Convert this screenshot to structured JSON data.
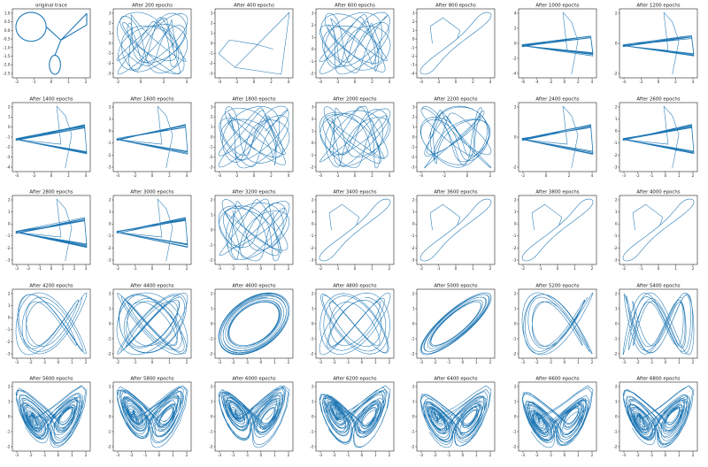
{
  "colors": {
    "trace": "#1f77b4",
    "axes": "#222222",
    "background": "#ffffff"
  },
  "chart_data": [
    {
      "type": "line",
      "title": "original trace",
      "xticks": [
        "-2",
        "-1",
        "0",
        "1",
        "2"
      ],
      "yticks": [
        "1.0",
        "0.5",
        "0.0",
        "-0.5",
        "-1.0",
        "-1.5",
        "-2.0",
        "-2.5"
      ],
      "shape": "original"
    },
    {
      "type": "line",
      "title": "After 200 epochs",
      "xticks": [
        "-2",
        "0",
        "2",
        "4"
      ],
      "yticks": [
        "3",
        "2",
        "1",
        "0",
        "-1",
        "-2",
        "-3"
      ],
      "shape": "tangle"
    },
    {
      "type": "line",
      "title": "After 400 epochs",
      "xticks": [
        "-4",
        "-2",
        "0",
        "2",
        "4"
      ],
      "yticks": [
        "3",
        "2",
        "1",
        "0",
        "-1",
        "-2",
        "-3"
      ],
      "shape": "triangle"
    },
    {
      "type": "line",
      "title": "After 600 epochs",
      "xticks": [
        "-4",
        "-2",
        "0",
        "2",
        "4"
      ],
      "yticks": [
        "3",
        "2",
        "1",
        "0",
        "-1",
        "-2"
      ],
      "shape": "tangle"
    },
    {
      "type": "line",
      "title": "After 800 epochs",
      "xticks": [
        "-4",
        "-2",
        "0",
        "2",
        "4"
      ],
      "yticks": [
        "3",
        "2",
        "1",
        "0",
        "-1",
        "-2",
        "-3",
        "-4"
      ],
      "shape": "band"
    },
    {
      "type": "line",
      "title": "After 1000 epochs",
      "xticks": [
        "-6",
        "-4",
        "-2",
        "0",
        "2",
        "4"
      ],
      "yticks": [
        "4",
        "2",
        "0",
        "-2",
        "-4"
      ],
      "shape": "flat"
    },
    {
      "type": "line",
      "title": "After 1200 epochs",
      "xticks": [
        "-4",
        "-2",
        "0",
        "2",
        "4"
      ],
      "yticks": [
        "2",
        "0",
        "-2"
      ],
      "shape": "flat"
    },
    {
      "type": "line",
      "title": "After 1400 epochs",
      "xticks": [
        "-4",
        "-2",
        "0",
        "2",
        "4"
      ],
      "yticks": [
        "2",
        "1",
        "0",
        "-1",
        "-2",
        "-3",
        "-4"
      ],
      "shape": "wedge"
    },
    {
      "type": "line",
      "title": "After 1600 epochs",
      "xticks": [
        "-4",
        "-2",
        "0",
        "2",
        "4"
      ],
      "yticks": [
        "2",
        "1",
        "0",
        "-1",
        "-2",
        "-3"
      ],
      "shape": "wedge"
    },
    {
      "type": "line",
      "title": "After 1800 epochs",
      "xticks": [
        "-4",
        "-2",
        "0",
        "2",
        "4"
      ],
      "yticks": [
        "3",
        "2",
        "1",
        "0",
        "-1",
        "-2",
        "-3"
      ],
      "shape": "tangle"
    },
    {
      "type": "line",
      "title": "After 2000 epochs",
      "xticks": [
        "-4",
        "-2",
        "0",
        "2",
        "4"
      ],
      "yticks": [
        "3",
        "2",
        "1",
        "0",
        "-1",
        "-2"
      ],
      "shape": "tangle"
    },
    {
      "type": "line",
      "title": "After 2200 epochs",
      "xticks": [
        "-4",
        "-2",
        "0",
        "2"
      ],
      "yticks": [
        "3",
        "2",
        "1",
        "0",
        "-1",
        "-2",
        "-3"
      ],
      "shape": "tangle"
    },
    {
      "type": "line",
      "title": "After 2400 epochs",
      "xticks": [
        "-2",
        "0",
        "2",
        "4"
      ],
      "yticks": [
        "2",
        "0",
        "-2"
      ],
      "shape": "wedge"
    },
    {
      "type": "line",
      "title": "After 2600 epochs",
      "xticks": [
        "-3",
        "-2",
        "-1",
        "0",
        "1",
        "2"
      ],
      "yticks": [
        "2",
        "1",
        "0",
        "-1",
        "-2",
        "-3"
      ],
      "shape": "wedge"
    },
    {
      "type": "line",
      "title": "After 2800 epochs",
      "xticks": [
        "-3",
        "-2",
        "-1",
        "0",
        "1",
        "2",
        "3"
      ],
      "yticks": [
        "2",
        "1",
        "0",
        "-1",
        "-2",
        "-3"
      ],
      "shape": "wedge"
    },
    {
      "type": "line",
      "title": "After 3000 epochs",
      "xticks": [
        "-2",
        "-1",
        "0",
        "1",
        "2"
      ],
      "yticks": [
        "2",
        "1",
        "0",
        "-1",
        "-2",
        "-3"
      ],
      "shape": "wedge"
    },
    {
      "type": "line",
      "title": "After 3200 epochs",
      "xticks": [
        "-3",
        "-2",
        "-1",
        "0",
        "1",
        "2"
      ],
      "yticks": [
        "2",
        "1",
        "0",
        "-1",
        "-2"
      ],
      "shape": "tangle"
    },
    {
      "type": "line",
      "title": "After 3400 epochs",
      "xticks": [
        "-2",
        "-1",
        "0",
        "1",
        "2"
      ],
      "yticks": [
        "2",
        "1",
        "0",
        "-1",
        "-2",
        "-3"
      ],
      "shape": "band"
    },
    {
      "type": "line",
      "title": "After 3600 epochs",
      "xticks": [
        "-2",
        "-1",
        "0",
        "1",
        "2"
      ],
      "yticks": [
        "2",
        "1",
        "0",
        "-1",
        "-2",
        "-3"
      ],
      "shape": "band"
    },
    {
      "type": "line",
      "title": "After 3800 epochs",
      "xticks": [
        "-2",
        "-1",
        "0",
        "1",
        "2"
      ],
      "yticks": [
        "2",
        "1",
        "0",
        "-1",
        "-2",
        "-3"
      ],
      "shape": "band"
    },
    {
      "type": "line",
      "title": "After 4000 epochs",
      "xticks": [
        "-2",
        "-1",
        "0",
        "1",
        "2"
      ],
      "yticks": [
        "2",
        "1",
        "0",
        "-1",
        "-2",
        "-3"
      ],
      "shape": "band"
    },
    {
      "type": "line",
      "title": "After 4200 epochs",
      "xticks": [
        "-3",
        "-2",
        "-1",
        "0",
        "1",
        "2"
      ],
      "yticks": [
        "2",
        "1",
        "0",
        "-1",
        "-2",
        "-3"
      ],
      "shape": "loops"
    },
    {
      "type": "line",
      "title": "After 4400 epochs",
      "xticks": [
        "-2",
        "-1",
        "0",
        "1",
        "2"
      ],
      "yticks": [
        "2",
        "1",
        "0",
        "-1",
        "-2"
      ],
      "shape": "loops"
    },
    {
      "type": "line",
      "title": "After 4600 epochs",
      "xticks": [
        "-3",
        "-2",
        "-1",
        "0",
        "1",
        "2"
      ],
      "yticks": [
        "2",
        "1",
        "0",
        "-1",
        "-2"
      ],
      "shape": "loops"
    },
    {
      "type": "line",
      "title": "After 4800 epochs",
      "xticks": [
        "-3",
        "-2",
        "-1",
        "0",
        "1",
        "2"
      ],
      "yticks": [
        "2",
        "1",
        "0",
        "-1",
        "-2"
      ],
      "shape": "loops"
    },
    {
      "type": "line",
      "title": "After 5000 epochs",
      "xticks": [
        "-3",
        "-2",
        "-1",
        "0",
        "1",
        "2"
      ],
      "yticks": [
        "2",
        "1",
        "0",
        "-1",
        "-2"
      ],
      "shape": "loops"
    },
    {
      "type": "line",
      "title": "After 5200 epochs",
      "xticks": [
        "-3",
        "-2",
        "-1",
        "0",
        "1",
        "2"
      ],
      "yticks": [
        "2",
        "1",
        "0",
        "-1",
        "-2"
      ],
      "shape": "loops"
    },
    {
      "type": "line",
      "title": "After 5400 epochs",
      "xticks": [
        "-3",
        "-2",
        "-1",
        "0",
        "1",
        "2"
      ],
      "yticks": [
        "2",
        "1",
        "0",
        "-1",
        "-2"
      ],
      "shape": "loops"
    },
    {
      "type": "line",
      "title": "After 5600 epochs",
      "xticks": [
        "-3",
        "-2",
        "-1",
        "0",
        "1",
        "2"
      ],
      "yticks": [
        "2",
        "1",
        "0",
        "-1",
        "-2"
      ],
      "shape": "lorenz"
    },
    {
      "type": "line",
      "title": "After 5800 epochs",
      "xticks": [
        "-3",
        "-2",
        "-1",
        "0",
        "1",
        "2"
      ],
      "yticks": [
        "2",
        "1",
        "0",
        "-1",
        "-2"
      ],
      "shape": "lorenz"
    },
    {
      "type": "line",
      "title": "After 6000 epochs",
      "xticks": [
        "-3",
        "-2",
        "-1",
        "0",
        "1",
        "2"
      ],
      "yticks": [
        "2",
        "1",
        "0",
        "-1",
        "-2"
      ],
      "shape": "lorenz"
    },
    {
      "type": "line",
      "title": "After 6200 epochs",
      "xticks": [
        "-3",
        "-2",
        "-1",
        "0",
        "1",
        "2"
      ],
      "yticks": [
        "2",
        "1",
        "0",
        "-1",
        "-2"
      ],
      "shape": "lorenz"
    },
    {
      "type": "line",
      "title": "After 6400 epochs",
      "xticks": [
        "-3",
        "-2",
        "-1",
        "0",
        "1",
        "2"
      ],
      "yticks": [
        "2",
        "1",
        "0",
        "-1",
        "-2"
      ],
      "shape": "lorenz"
    },
    {
      "type": "line",
      "title": "After 6600 epochs",
      "xticks": [
        "-3",
        "-2",
        "-1",
        "0",
        "1",
        "2"
      ],
      "yticks": [
        "2",
        "1",
        "0",
        "-1",
        "-2"
      ],
      "shape": "lorenz"
    },
    {
      "type": "line",
      "title": "After 6800 epochs",
      "xticks": [
        "-3",
        "-2",
        "-1",
        "0",
        "1",
        "2"
      ],
      "yticks": [
        "2",
        "1",
        "0",
        "-1",
        "-2"
      ],
      "shape": "lorenz"
    }
  ]
}
